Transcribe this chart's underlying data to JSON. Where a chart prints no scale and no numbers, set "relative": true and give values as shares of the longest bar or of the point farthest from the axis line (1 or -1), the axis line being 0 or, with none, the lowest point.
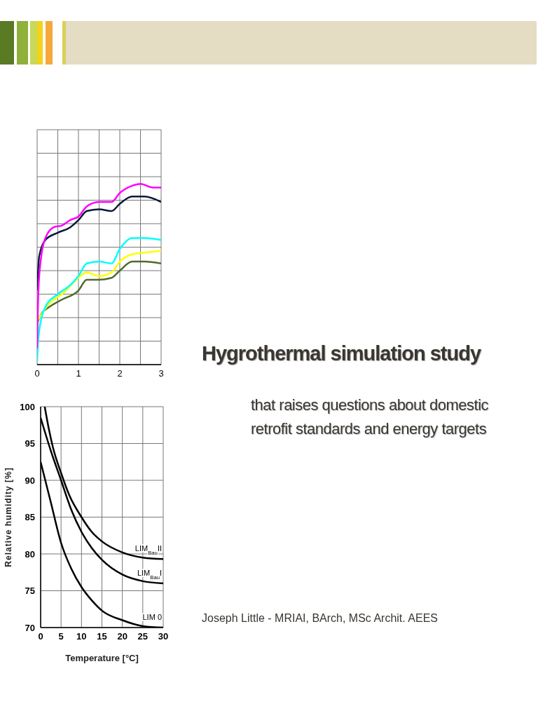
{
  "chart_data": [
    {
      "type": "line",
      "relative": true,
      "xlim": [
        0,
        3
      ],
      "xticks": [
        0,
        {
          "value": 0.5,
          "label": null
        },
        1,
        {
          "value": 1.5,
          "label": null
        },
        2,
        {
          "value": 2.5,
          "label": null
        },
        3
      ],
      "grid": true,
      "marker": "none",
      "tick_labels": "x",
      "series": [
        {
          "color": "#4f6b2a",
          "x": [
            0,
            0.1,
            0.3,
            0.6,
            1.0,
            1.2,
            1.5,
            1.8,
            2.0,
            2.3,
            2.6,
            3.0
          ],
          "values": [
            0.23,
            0.28,
            0.32,
            0.36,
            0.41,
            0.47,
            0.47,
            0.48,
            0.52,
            0.57,
            0.57,
            0.56
          ]
        },
        {
          "color": "#ffff00",
          "x": [
            0,
            0.3,
            0.6,
            1.0,
            1.2,
            1.5,
            1.8,
            2.0,
            2.3,
            2.6,
            3.0
          ],
          "values": [
            0.24,
            0.34,
            0.39,
            0.48,
            0.51,
            0.49,
            0.51,
            0.57,
            0.61,
            0.62,
            0.63
          ]
        },
        {
          "color": "#00ffff",
          "x": [
            0,
            0.03,
            0.2,
            0.5,
            0.8,
            1.0,
            1.2,
            1.5,
            1.8,
            2.0,
            2.3,
            2.6,
            3.0
          ],
          "values": [
            0.02,
            0.15,
            0.32,
            0.39,
            0.44,
            0.49,
            0.56,
            0.57,
            0.56,
            0.64,
            0.7,
            0.7,
            0.69
          ]
        },
        {
          "color": "#0a1a3a",
          "x": [
            0,
            0.05,
            0.2,
            0.5,
            0.8,
            1.0,
            1.2,
            1.5,
            1.8,
            2.0,
            2.3,
            2.6,
            3.0
          ],
          "values": [
            0.41,
            0.6,
            0.69,
            0.73,
            0.76,
            0.8,
            0.85,
            0.86,
            0.85,
            0.89,
            0.93,
            0.93,
            0.9
          ]
        },
        {
          "color": "#ff00ff",
          "x": [
            0,
            0.03,
            0.1,
            0.2,
            0.4,
            0.6,
            0.8,
            1.0,
            1.2,
            1.5,
            1.8,
            2.0,
            2.3,
            2.5,
            2.8,
            3.0
          ],
          "values": [
            0.09,
            0.41,
            0.6,
            0.7,
            0.76,
            0.77,
            0.8,
            0.82,
            0.875,
            0.9,
            0.9,
            0.95,
            0.99,
            1.0,
            0.98,
            0.98
          ]
        }
      ]
    },
    {
      "type": "line",
      "xlabel": "Temperature [°C]",
      "ylabel": "Relative humidity [%]",
      "xlim": [
        0,
        30
      ],
      "xticks": [
        0,
        5,
        10,
        15,
        20,
        25,
        30
      ],
      "ylim": [
        70,
        100
      ],
      "yticks": [
        70,
        75,
        80,
        85,
        90,
        95,
        100
      ],
      "grid": true,
      "marker": "none",
      "series": [
        {
          "name": "LIM$_{Bau}$II",
          "color": "#000000",
          "x": [
            1,
            2,
            3,
            5,
            7,
            10,
            12.5,
            15,
            20,
            25,
            30
          ],
          "values": [
            100,
            97,
            94.5,
            91,
            88,
            85,
            83,
            81.7,
            80.2,
            79.5,
            79.3
          ]
        },
        {
          "name": "LIM$_{Bau}$I",
          "color": "#000000",
          "x": [
            0,
            2.5,
            5,
            7.5,
            10,
            12.5,
            15,
            20,
            25,
            30
          ],
          "values": [
            98.5,
            94,
            90,
            86,
            83,
            80.8,
            79.2,
            77.2,
            76.3,
            76
          ]
        },
        {
          "name": "LIM 0",
          "color": "#000000",
          "x": [
            0,
            2.5,
            5,
            7.5,
            10,
            12.5,
            15,
            20,
            25,
            30
          ],
          "values": [
            92.5,
            87,
            81.5,
            78,
            75.5,
            73.7,
            72.3,
            71,
            70.2,
            70
          ]
        }
      ]
    },
    {
      "type": "other",
      "title": "Hygrothermal simulation study",
      "subtitle": "that raises questions about domestic retrofit standards and energy targets",
      "annotations": [
        "Joseph Little - MRIAI, BArch, MSc Archit. AEES"
      ]
    }
  ]
}
